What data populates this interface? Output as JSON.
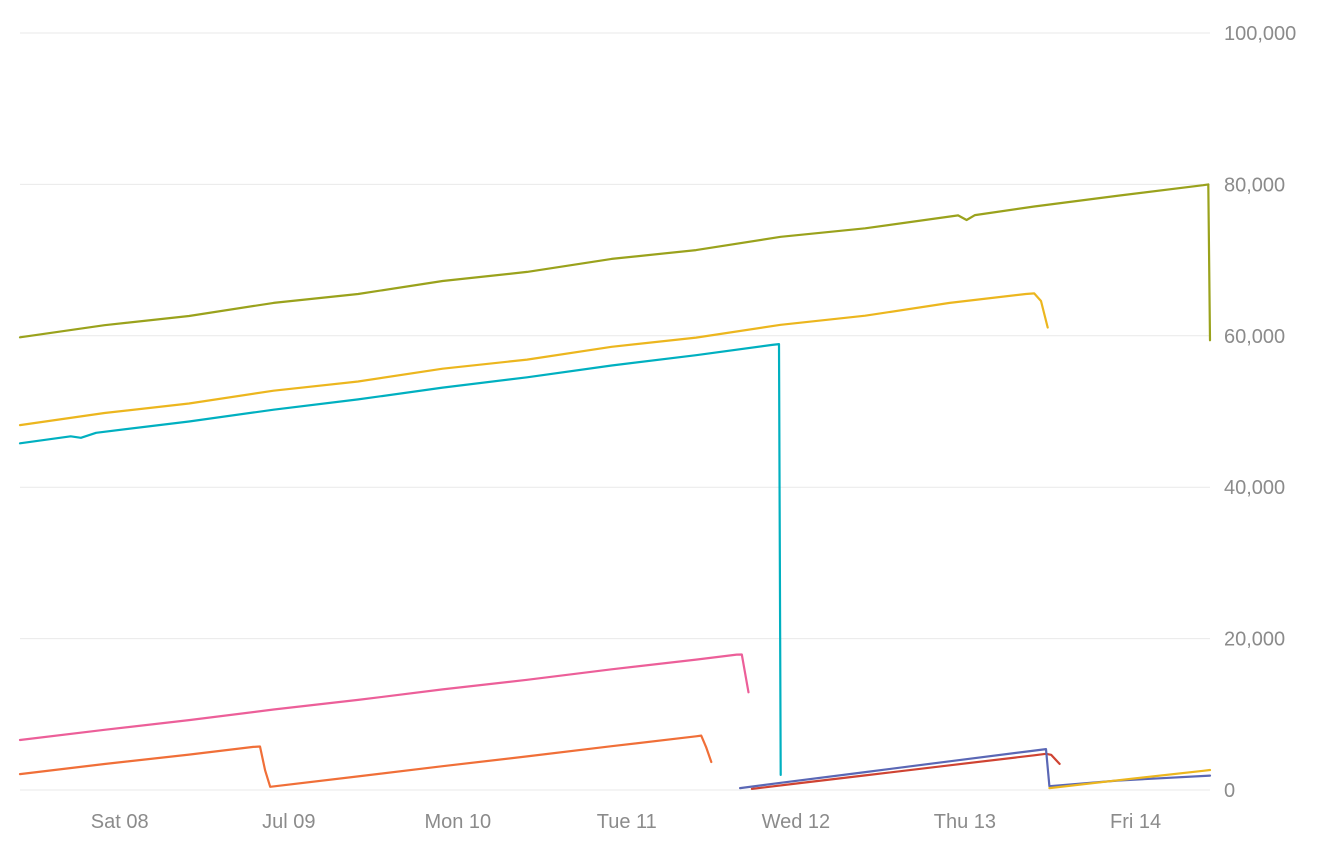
{
  "page": {
    "background_color": "#ffffff"
  },
  "chart_data": {
    "type": "line",
    "title": "",
    "xlabel": "",
    "ylabel": "",
    "grid": "horizontal",
    "legend": "none",
    "x_axis": {
      "unit": "days",
      "domain": [
        0,
        7.04
      ],
      "ticks": [
        {
          "t": 0.59,
          "label": "Sat 08"
        },
        {
          "t": 1.59,
          "label": "Jul 09"
        },
        {
          "t": 2.59,
          "label": "Mon 10"
        },
        {
          "t": 3.59,
          "label": "Tue 11"
        },
        {
          "t": 4.59,
          "label": "Wed 12"
        },
        {
          "t": 5.59,
          "label": "Thu 13"
        },
        {
          "t": 6.6,
          "label": "Fri 14"
        }
      ]
    },
    "y_axis": {
      "position": "right",
      "domain": [
        0,
        100000
      ],
      "ticks": [
        0,
        20000,
        40000,
        60000,
        80000,
        100000
      ],
      "tick_labels": [
        "0",
        "20,000",
        "40,000",
        "60,000",
        "80,000",
        "100,000"
      ]
    },
    "style": {
      "grid_color": "#e9e9e9",
      "label_color": "#8b8b8b",
      "label_size": 20,
      "line_width": 2.2
    },
    "series": [
      {
        "name": "olive",
        "color": "#9aa21c",
        "points": [
          [
            0,
            59800
          ],
          [
            0.5,
            61400
          ],
          [
            1,
            62620
          ],
          [
            1.5,
            64340
          ],
          [
            2,
            65520
          ],
          [
            2.5,
            67240
          ],
          [
            3,
            68440
          ],
          [
            3.5,
            70160
          ],
          [
            4,
            71320
          ],
          [
            4.5,
            73080
          ],
          [
            5,
            74200
          ],
          [
            5.55,
            75900
          ],
          [
            5.6,
            75300
          ],
          [
            5.65,
            75950
          ],
          [
            6,
            77080
          ],
          [
            6.5,
            78520
          ],
          [
            7,
            79900
          ],
          [
            7.03,
            80000
          ],
          [
            7.04,
            59400
          ]
        ]
      },
      {
        "name": "gold",
        "color": "#ecb61e",
        "points": [
          [
            0,
            48200
          ],
          [
            0.5,
            49800
          ],
          [
            1,
            51060
          ],
          [
            1.5,
            52750
          ],
          [
            2,
            53960
          ],
          [
            2.5,
            55650
          ],
          [
            3,
            56860
          ],
          [
            3.5,
            58550
          ],
          [
            4,
            59760
          ],
          [
            4.5,
            61450
          ],
          [
            5,
            62660
          ],
          [
            5.5,
            64350
          ],
          [
            5.95,
            65520
          ],
          [
            6,
            65600
          ],
          [
            6.04,
            64600
          ],
          [
            6.08,
            61100
          ]
        ]
      },
      {
        "name": "teal",
        "color": "#00b0c0",
        "points": [
          [
            0,
            45800
          ],
          [
            0.3,
            46720
          ],
          [
            0.36,
            46520
          ],
          [
            0.45,
            47180
          ],
          [
            1,
            48680
          ],
          [
            1.5,
            50240
          ],
          [
            2,
            51600
          ],
          [
            2.5,
            53160
          ],
          [
            3,
            54520
          ],
          [
            3.5,
            56080
          ],
          [
            4,
            57440
          ],
          [
            4.45,
            58800
          ],
          [
            4.49,
            58900
          ],
          [
            4.5,
            2000
          ]
        ]
      },
      {
        "name": "pink",
        "color": "#ec5f99",
        "points": [
          [
            0,
            6600
          ],
          [
            0.5,
            7950
          ],
          [
            1,
            9240
          ],
          [
            1.5,
            10630
          ],
          [
            2,
            11900
          ],
          [
            2.5,
            13290
          ],
          [
            3,
            14560
          ],
          [
            3.5,
            15950
          ],
          [
            4,
            17220
          ],
          [
            4.24,
            17890
          ],
          [
            4.27,
            17900
          ],
          [
            4.31,
            12900
          ]
        ]
      },
      {
        "name": "orange",
        "color": "#f06f38",
        "points": [
          [
            0,
            2100
          ],
          [
            0.5,
            3430
          ],
          [
            1,
            4680
          ],
          [
            1.38,
            5690
          ],
          [
            1.42,
            5750
          ],
          [
            1.45,
            2600
          ],
          [
            1.48,
            420
          ],
          [
            2,
            1800
          ],
          [
            2.5,
            3140
          ],
          [
            3,
            4440
          ],
          [
            3.5,
            5780
          ],
          [
            4,
            7090
          ],
          [
            4.03,
            7180
          ],
          [
            4.06,
            5600
          ],
          [
            4.09,
            3700
          ]
        ]
      },
      {
        "name": "red",
        "color": "#cf4332",
        "points": [
          [
            4.33,
            150
          ],
          [
            4.6,
            870
          ],
          [
            5,
            1930
          ],
          [
            5.5,
            3260
          ],
          [
            6,
            4590
          ],
          [
            6.07,
            4780
          ],
          [
            6.1,
            4650
          ],
          [
            6.15,
            3450
          ]
        ]
      },
      {
        "name": "indigo",
        "color": "#5a67b5",
        "points": [
          [
            4.26,
            250
          ],
          [
            4.5,
            950
          ],
          [
            5,
            2360
          ],
          [
            5.5,
            3790
          ],
          [
            6,
            5210
          ],
          [
            6.07,
            5400
          ],
          [
            6.09,
            500
          ],
          [
            6.5,
            1250
          ],
          [
            7.04,
            1900
          ]
        ]
      },
      {
        "name": "gold-restart",
        "color": "#ecb61e",
        "points": [
          [
            6.09,
            250
          ],
          [
            6.5,
            1290
          ],
          [
            7,
            2540
          ],
          [
            7.04,
            2640
          ]
        ]
      }
    ]
  }
}
